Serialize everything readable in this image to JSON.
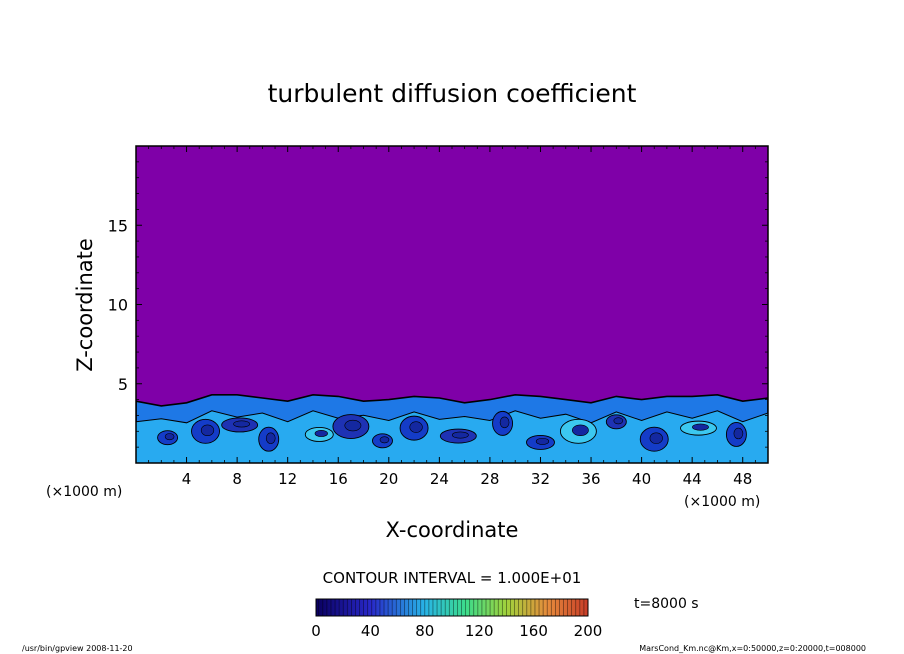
{
  "chart_data": {
    "type": "heatmap",
    "title": "turbulent diffusion coefficient",
    "xlabel": "X-coordinate",
    "ylabel": "Z-coordinate",
    "x_unit_left": "(×1000 m)",
    "x_unit_right": "(×1000 m)",
    "xlim": [
      0,
      50
    ],
    "ylim": [
      0,
      20
    ],
    "xticks": [
      4,
      8,
      12,
      16,
      20,
      24,
      28,
      32,
      36,
      40,
      44,
      48
    ],
    "yticks": [
      5,
      10,
      15
    ],
    "contour_interval": "CONTOUR INTERVAL = 1.000E+01",
    "time_label": "t=8000 s",
    "colorbar": {
      "min": 0,
      "max": 200,
      "ticks": [
        0,
        40,
        80,
        120,
        160,
        200
      ]
    },
    "background_color": "#7f00a8",
    "turbulent_layer": {
      "top_height": [
        3.9,
        3.6,
        3.8,
        4.3,
        4.3,
        4.1,
        3.9,
        4.3,
        4.2,
        3.9,
        4.0,
        4.2,
        4.1,
        3.8,
        4.0,
        4.3,
        4.2,
        4.0,
        3.8,
        4.2,
        4.0,
        4.2,
        4.2,
        4.3,
        3.9,
        4.1
      ],
      "patches": [
        {
          "x": 2.5,
          "z": 1.6,
          "value": 40
        },
        {
          "x": 5.5,
          "z": 2.0,
          "value": 55
        },
        {
          "x": 8.2,
          "z": 2.4,
          "value": 35
        },
        {
          "x": 10.5,
          "z": 1.5,
          "value": 50
        },
        {
          "x": 14.5,
          "z": 1.8,
          "value": 60
        },
        {
          "x": 17.0,
          "z": 2.3,
          "value": 30
        },
        {
          "x": 19.5,
          "z": 1.4,
          "value": 45
        },
        {
          "x": 22.0,
          "z": 2.2,
          "value": 55
        },
        {
          "x": 25.5,
          "z": 1.7,
          "value": 35
        },
        {
          "x": 29.0,
          "z": 2.5,
          "value": 50
        },
        {
          "x": 32.0,
          "z": 1.3,
          "value": 40
        },
        {
          "x": 35.0,
          "z": 2.0,
          "value": 65
        },
        {
          "x": 38.0,
          "z": 2.6,
          "value": 30
        },
        {
          "x": 41.0,
          "z": 1.5,
          "value": 55
        },
        {
          "x": 44.5,
          "z": 2.2,
          "value": 60
        },
        {
          "x": 47.5,
          "z": 1.8,
          "value": 45
        }
      ]
    }
  },
  "footer": {
    "left": "/usr/bin/gpview   2008-11-20",
    "right": "MarsCond_Km.nc@Km,x=0:50000,z=0:20000,t=008000"
  }
}
